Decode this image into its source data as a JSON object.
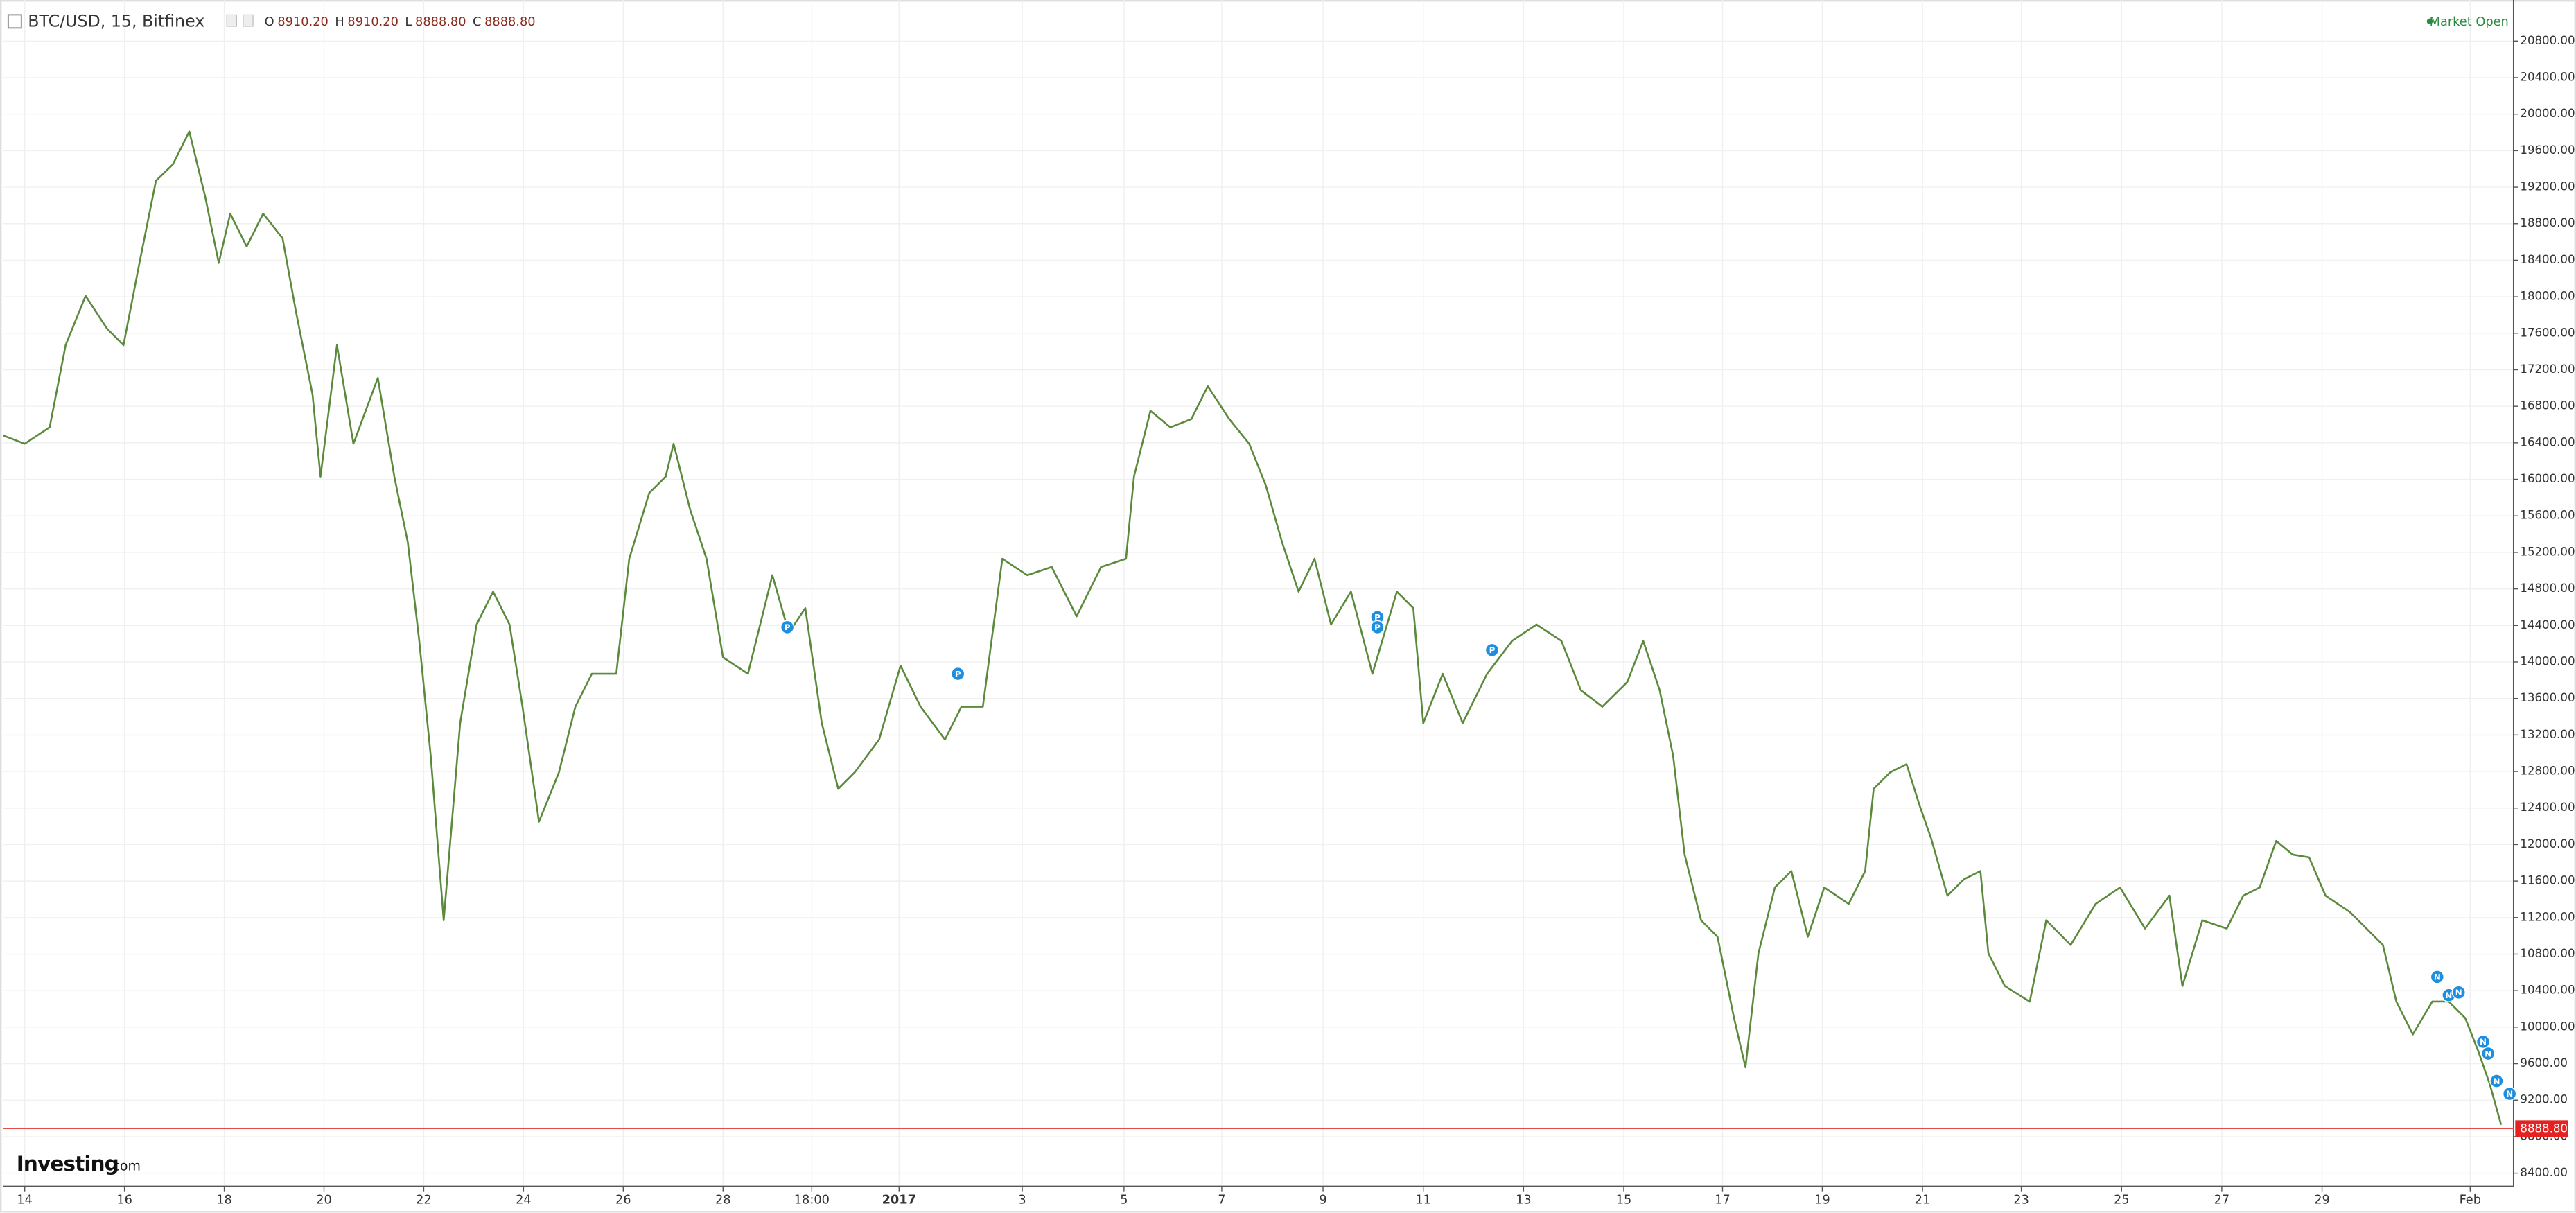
{
  "chart_data": {
    "type": "line",
    "header": {
      "symbol": "BTC/USD, 15, Bitfinex",
      "ohlc": [
        {
          "key": "O",
          "value": 8910.2,
          "label": "8910.20"
        },
        {
          "key": "H",
          "value": 8910.2,
          "label": "8910.20"
        },
        {
          "key": "L",
          "value": 8888.8,
          "label": "8888.80"
        },
        {
          "key": "C",
          "value": 8888.8,
          "label": "8888.80"
        }
      ]
    },
    "status": "Market Open",
    "logo": {
      "brand": "Investing",
      "suffix": ".com"
    },
    "last_price": {
      "value": 8888.8,
      "label": "8888.80"
    },
    "color": "#5b8a3c",
    "x": [
      -0.43,
      0,
      0.5,
      0.82,
      1.22,
      1.65,
      1.98,
      2.3,
      2.63,
      2.97,
      3.3,
      3.62,
      3.89,
      4.12,
      4.45,
      4.78,
      5.17,
      5.44,
      5.77,
      5.93,
      6.26,
      6.59,
      7.08,
      7.41,
      7.68,
      7.91,
      8.14,
      8.4,
      8.73,
      9.06,
      9.39,
      9.72,
      9.98,
      10.31,
      10.71,
      11.04,
      11.37,
      11.86,
      12.12,
      12.52,
      12.85,
      13.01,
      13.34,
      13.67,
      14.0,
      14.5,
      14.99,
      15.32,
      15.65,
      15.98,
      16.31,
      16.64,
      17.13,
      17.56,
      17.96,
      18.45,
      18.78,
      19.21,
      19.6,
      20.1,
      20.59,
      21.09,
      21.58,
      22.08,
      22.24,
      22.57,
      22.97,
      23.39,
      23.72,
      24.15,
      24.55,
      24.88,
      25.21,
      25.54,
      25.86,
      26.19,
      26.59,
      27.02,
      27.51,
      27.84,
      28.04,
      28.43,
      28.83,
      29.32,
      29.82,
      30.31,
      30.81,
      31.2,
      31.63,
      32.13,
      32.45,
      32.78,
      33.05,
      33.28,
      33.61,
      33.94,
      34.27,
      34.5,
      34.76,
      35.09,
      35.42,
      35.75,
      36.08,
      36.57,
      36.9,
      37.07,
      37.4,
      37.73,
      37.99,
      38.22,
      38.55,
      38.88,
      39.21,
      39.37,
      39.7,
      40.2,
      40.53,
      41.02,
      41.52,
      42.01,
      42.51,
      43.0,
      43.26,
      43.66,
      44.15,
      44.48,
      44.81,
      45.14,
      45.47,
      45.8,
      46.13,
      46.62,
      46.95,
      47.28,
      47.55,
      47.88,
      48.27,
      48.6,
      48.93,
      49.19,
      49.42,
      49.65
    ],
    "values": [
      16480,
      16390,
      16570,
      17470,
      18010,
      17650,
      17470,
      18370,
      19270,
      19450,
      19810,
      19090,
      18370,
      18910,
      18550,
      18910,
      18640,
      17830,
      16930,
      16030,
      17470,
      16390,
      17110,
      16030,
      15310,
      14230,
      12970,
      11170,
      13330,
      14410,
      14770,
      14410,
      13510,
      12250,
      12790,
      13510,
      13870,
      13870,
      15130,
      15850,
      16030,
      16390,
      15670,
      15130,
      14050,
      13870,
      14950,
      14320,
      14590,
      13330,
      12610,
      12790,
      13150,
      13960,
      13510,
      13150,
      13510,
      13510,
      15130,
      14950,
      15040,
      14500,
      15040,
      15130,
      16030,
      16750,
      16570,
      16660,
      17020,
      16660,
      16390,
      15940,
      15310,
      14770,
      15130,
      14410,
      14770,
      13870,
      14770,
      14590,
      13330,
      13870,
      13330,
      13870,
      14230,
      14410,
      14230,
      13690,
      13510,
      13780,
      14230,
      13690,
      12970,
      11890,
      11170,
      10990,
      10100,
      9560,
      10810,
      11530,
      11710,
      10990,
      11530,
      11350,
      11710,
      12610,
      12790,
      12880,
      12430,
      12070,
      11440,
      11620,
      11710,
      10810,
      10450,
      10280,
      11170,
      10900,
      11350,
      11530,
      11080,
      11440,
      10450,
      11170,
      11080,
      11440,
      11530,
      12040,
      11890,
      11860,
      11440,
      11260,
      11080,
      10900,
      10280,
      9920,
      10280,
      10280,
      10100,
      9740,
      9380,
      8930
    ],
    "events": [
      {
        "x": 15.29,
        "y": 14380,
        "label": "P"
      },
      {
        "x": 18.71,
        "y": 13870,
        "label": "P"
      },
      {
        "x": 27.12,
        "y": 14490,
        "label": "P"
      },
      {
        "x": 27.12,
        "y": 14380,
        "label": "P"
      },
      {
        "x": 29.42,
        "y": 14130,
        "label": "P"
      },
      {
        "x": 48.37,
        "y": 10550,
        "label": "N"
      },
      {
        "x": 48.6,
        "y": 10350,
        "label": "N"
      },
      {
        "x": 48.8,
        "y": 10380,
        "label": "N"
      },
      {
        "x": 49.29,
        "y": 9840,
        "label": "N"
      },
      {
        "x": 49.39,
        "y": 9710,
        "label": "N"
      },
      {
        "x": 49.56,
        "y": 9410,
        "label": "N"
      },
      {
        "x": 49.82,
        "y": 9270,
        "label": "N"
      }
    ],
    "xlim": [
      -0.43,
      49.9
    ],
    "ylim": [
      8256,
      21250
    ],
    "xticks": [
      {
        "value": 0,
        "label": "14"
      },
      {
        "value": 2,
        "label": "16"
      },
      {
        "value": 4,
        "label": "18"
      },
      {
        "value": 6,
        "label": "20"
      },
      {
        "value": 8,
        "label": "22"
      },
      {
        "value": 10,
        "label": "24"
      },
      {
        "value": 12,
        "label": "26"
      },
      {
        "value": 14,
        "label": "28"
      },
      {
        "value": 15.78,
        "label": "18:00"
      },
      {
        "value": 17.53,
        "label": "2017"
      },
      {
        "value": 20,
        "label": "3"
      },
      {
        "value": 22.04,
        "label": "5"
      },
      {
        "value": 24,
        "label": "7"
      },
      {
        "value": 26.03,
        "label": "9"
      },
      {
        "value": 28.04,
        "label": "11"
      },
      {
        "value": 30.05,
        "label": "13"
      },
      {
        "value": 32.06,
        "label": "15"
      },
      {
        "value": 34.04,
        "label": "17"
      },
      {
        "value": 36.04,
        "label": "19"
      },
      {
        "value": 38.05,
        "label": "21"
      },
      {
        "value": 40.03,
        "label": "23"
      },
      {
        "value": 42.04,
        "label": "25"
      },
      {
        "value": 44.05,
        "label": "27"
      },
      {
        "value": 46.06,
        "label": "29"
      },
      {
        "value": 49.03,
        "label": "Feb"
      }
    ],
    "yticks": [
      {
        "value": 8400,
        "label": "8400.00"
      },
      {
        "value": 8800,
        "label": "8800.00"
      },
      {
        "value": 9200,
        "label": "9200.00"
      },
      {
        "value": 9600,
        "label": "9600.00"
      },
      {
        "value": 10000,
        "label": "10000.00"
      },
      {
        "value": 10400,
        "label": "10400.00"
      },
      {
        "value": 10800,
        "label": "10800.00"
      },
      {
        "value": 11200,
        "label": "11200.00"
      },
      {
        "value": 11600,
        "label": "11600.00"
      },
      {
        "value": 12000,
        "label": "12000.00"
      },
      {
        "value": 12400,
        "label": "12400.00"
      },
      {
        "value": 12800,
        "label": "12800.00"
      },
      {
        "value": 13200,
        "label": "13200.00"
      },
      {
        "value": 13600,
        "label": "13600.00"
      },
      {
        "value": 14000,
        "label": "14000.00"
      },
      {
        "value": 14400,
        "label": "14400.00"
      },
      {
        "value": 14800,
        "label": "14800.00"
      },
      {
        "value": 15200,
        "label": "15200.00"
      },
      {
        "value": 15600,
        "label": "15600.00"
      },
      {
        "value": 16000,
        "label": "16000.00"
      },
      {
        "value": 16400,
        "label": "16400.00"
      },
      {
        "value": 16800,
        "label": "16800.00"
      },
      {
        "value": 17200,
        "label": "17200.00"
      },
      {
        "value": 17600,
        "label": "17600.00"
      },
      {
        "value": 18000,
        "label": "18000.00"
      },
      {
        "value": 18400,
        "label": "18400.00"
      },
      {
        "value": 18800,
        "label": "18800.00"
      },
      {
        "value": 19200,
        "label": "19200.00"
      },
      {
        "value": 19600,
        "label": "19600.00"
      },
      {
        "value": 20000,
        "label": "20000.00"
      },
      {
        "value": 20400,
        "label": "20400.00"
      },
      {
        "value": 20800,
        "label": "20800.00"
      }
    ],
    "grid": true
  }
}
